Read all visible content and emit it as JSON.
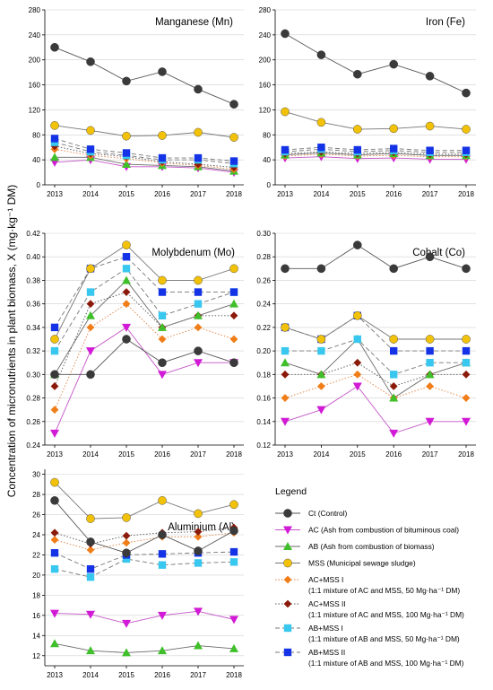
{
  "y_axis_label": "Concentration of micronutrients in plant biomass, X (mg·kg⁻¹ DM)",
  "legend": {
    "title": "Legend",
    "entries": [
      {
        "key": "ct",
        "lines": [
          "Ct (Control)"
        ]
      },
      {
        "key": "ac",
        "lines": [
          "AC (Ash from combustion of bituminous coal)"
        ]
      },
      {
        "key": "ab",
        "lines": [
          "AB (Ash from combustion of biomass)"
        ]
      },
      {
        "key": "mss",
        "lines": [
          "MSS (Municipal sewage sludge)"
        ]
      },
      {
        "key": "acmss1",
        "lines": [
          "AC+MSS I",
          "(1:1 mixture of AC and MSS, 50 Mg·ha⁻¹ DM)"
        ]
      },
      {
        "key": "acmss2",
        "lines": [
          "AC+MSS II",
          "(1:1 mixture of AC and MSS, 100 Mg·ha⁻¹ DM)"
        ]
      },
      {
        "key": "abmss1",
        "lines": [
          "AB+MSS I",
          "(1:1 mixture of AB and MSS, 50 Mg·ha⁻¹ DM)"
        ]
      },
      {
        "key": "abmss2",
        "lines": [
          "AB+MSS II",
          "(1:1 mixture of AB and MSS, 100 Mg·ha⁻¹ DM)"
        ]
      }
    ]
  },
  "series_styles": {
    "ct": {
      "color": "#3a3a3a",
      "line": "#555555",
      "dash": "",
      "marker": "circle"
    },
    "ac": {
      "color": "#d21ad6",
      "line": "#c455c8",
      "dash": "",
      "marker": "triangle-down"
    },
    "ab": {
      "color": "#3fbf2a",
      "line": "#6a6a6a",
      "dash": "",
      "marker": "triangle-up"
    },
    "mss": {
      "color": "#f2c20a",
      "line": "#777777",
      "dash": "",
      "marker": "circle"
    },
    "acmss1": {
      "color": "#f07d18",
      "line": "#e08040",
      "dash": "1.5,2",
      "marker": "diamond"
    },
    "acmss2": {
      "color": "#8b1a0a",
      "line": "#555555",
      "dash": "1.5,2",
      "marker": "diamond"
    },
    "abmss1": {
      "color": "#38c7ef",
      "line": "#777777",
      "dash": "5,3",
      "marker": "square"
    },
    "abmss2": {
      "color": "#1433e6",
      "line": "#777777",
      "dash": "5,3",
      "marker": "square"
    }
  },
  "chart_data": [
    {
      "type": "line",
      "title": "Manganese (Mn)",
      "x": [
        "2013",
        "2014",
        "2015",
        "2016",
        "2017",
        "2018"
      ],
      "ylim": [
        0,
        280
      ],
      "yticks": [
        0,
        40,
        80,
        120,
        160,
        200,
        240,
        280
      ],
      "grid": true,
      "series": [
        {
          "key": "ct",
          "values": [
            220,
            197,
            166,
            181,
            153,
            129
          ]
        },
        {
          "key": "mss",
          "values": [
            95,
            87,
            78,
            79,
            84,
            76
          ]
        },
        {
          "key": "abmss2",
          "values": [
            74,
            57,
            51,
            43,
            43,
            38
          ]
        },
        {
          "key": "abmss1",
          "values": [
            68,
            53,
            47,
            40,
            40,
            34
          ]
        },
        {
          "key": "acmss2",
          "values": [
            62,
            50,
            45,
            37,
            33,
            28
          ]
        },
        {
          "key": "acmss1",
          "values": [
            57,
            47,
            42,
            35,
            31,
            25
          ]
        },
        {
          "key": "ab",
          "values": [
            44,
            44,
            33,
            31,
            29,
            22
          ]
        },
        {
          "key": "ac",
          "values": [
            36,
            40,
            29,
            29,
            27,
            20
          ]
        }
      ]
    },
    {
      "type": "line",
      "title": "Iron (Fe)",
      "x": [
        "2013",
        "2014",
        "2015",
        "2016",
        "2017",
        "2018"
      ],
      "ylim": [
        0,
        280
      ],
      "yticks": [
        0,
        40,
        80,
        120,
        160,
        200,
        240,
        280
      ],
      "grid": true,
      "series": [
        {
          "key": "ct",
          "values": [
            242,
            208,
            177,
            193,
            174,
            147
          ]
        },
        {
          "key": "mss",
          "values": [
            117,
            100,
            89,
            90,
            94,
            89
          ]
        },
        {
          "key": "abmss2",
          "values": [
            56,
            60,
            56,
            58,
            55,
            55
          ]
        },
        {
          "key": "abmss1",
          "values": [
            53,
            57,
            53,
            55,
            52,
            52
          ]
        },
        {
          "key": "acmss2",
          "values": [
            50,
            53,
            50,
            52,
            49,
            49
          ]
        },
        {
          "key": "ab",
          "values": [
            48,
            51,
            48,
            50,
            47,
            47
          ]
        },
        {
          "key": "acmss1",
          "values": [
            46,
            49,
            46,
            47,
            45,
            45
          ]
        },
        {
          "key": "ac",
          "values": [
            43,
            45,
            42,
            43,
            41,
            41
          ]
        }
      ]
    },
    {
      "type": "line",
      "title": "Molybdenum (Mo)",
      "x": [
        "2013",
        "2014",
        "2015",
        "2016",
        "2017",
        "2018"
      ],
      "ylim": [
        0.24,
        0.42
      ],
      "yticks": [
        0.24,
        0.26,
        0.28,
        0.3,
        0.32,
        0.34,
        0.36,
        0.38,
        0.4,
        0.42
      ],
      "grid": true,
      "series": [
        {
          "key": "ct",
          "values": [
            0.3,
            0.3,
            0.33,
            0.31,
            0.32,
            0.31
          ]
        },
        {
          "key": "mss",
          "values": [
            0.33,
            0.39,
            0.41,
            0.38,
            0.38,
            0.39
          ]
        },
        {
          "key": "abmss2",
          "values": [
            0.34,
            0.39,
            0.4,
            0.37,
            0.37,
            0.37
          ]
        },
        {
          "key": "abmss1",
          "values": [
            0.32,
            0.37,
            0.39,
            0.35,
            0.36,
            0.37
          ]
        },
        {
          "key": "ab",
          "values": [
            0.3,
            0.35,
            0.38,
            0.34,
            0.35,
            0.36
          ]
        },
        {
          "key": "acmss2",
          "values": [
            0.29,
            0.36,
            0.37,
            0.34,
            0.35,
            0.35
          ]
        },
        {
          "key": "acmss1",
          "values": [
            0.27,
            0.34,
            0.36,
            0.33,
            0.34,
            0.33
          ]
        },
        {
          "key": "ac",
          "values": [
            0.25,
            0.32,
            0.34,
            0.3,
            0.31,
            0.31
          ]
        }
      ]
    },
    {
      "type": "line",
      "title": "Cobalt (Co)",
      "x": [
        "2013",
        "2014",
        "2015",
        "2016",
        "2017",
        "2018"
      ],
      "ylim": [
        0.12,
        0.3
      ],
      "yticks": [
        0.12,
        0.14,
        0.16,
        0.18,
        0.2,
        0.22,
        0.24,
        0.26,
        0.28,
        0.3
      ],
      "grid": true,
      "series": [
        {
          "key": "ct",
          "values": [
            0.27,
            0.27,
            0.29,
            0.27,
            0.28,
            0.27
          ]
        },
        {
          "key": "mss",
          "values": [
            0.22,
            0.21,
            0.23,
            0.21,
            0.21,
            0.21
          ]
        },
        {
          "key": "abmss2",
          "values": [
            0.22,
            0.21,
            0.23,
            0.2,
            0.2,
            0.2
          ]
        },
        {
          "key": "abmss1",
          "values": [
            0.2,
            0.2,
            0.21,
            0.18,
            0.19,
            0.19
          ]
        },
        {
          "key": "ab",
          "values": [
            0.19,
            0.18,
            0.21,
            0.16,
            0.18,
            0.19
          ]
        },
        {
          "key": "acmss2",
          "values": [
            0.18,
            0.18,
            0.19,
            0.17,
            0.18,
            0.18
          ]
        },
        {
          "key": "acmss1",
          "values": [
            0.16,
            0.17,
            0.18,
            0.16,
            0.17,
            0.16
          ]
        },
        {
          "key": "ac",
          "values": [
            0.14,
            0.15,
            0.17,
            0.13,
            0.14,
            0.14
          ]
        }
      ]
    },
    {
      "type": "line",
      "title": "Aluminium (Al)",
      "x": [
        "2013",
        "2014",
        "2015",
        "2016",
        "2017",
        "2018"
      ],
      "ylim": [
        11,
        30.5
      ],
      "yticks": [
        12,
        14,
        16,
        18,
        20,
        22,
        24,
        26,
        28,
        30
      ],
      "grid": true,
      "series": [
        {
          "key": "ct",
          "values": [
            27.4,
            23.3,
            22.2,
            24.0,
            22.4,
            24.4
          ]
        },
        {
          "key": "mss",
          "values": [
            29.2,
            25.6,
            25.7,
            27.4,
            26.1,
            27.0
          ]
        },
        {
          "key": "acmss2",
          "values": [
            24.2,
            23.1,
            23.9,
            24.2,
            24.3,
            24.7
          ]
        },
        {
          "key": "acmss1",
          "values": [
            23.5,
            22.5,
            23.2,
            23.8,
            23.8,
            24.2
          ]
        },
        {
          "key": "abmss2",
          "values": [
            22.2,
            20.6,
            22.0,
            22.1,
            22.2,
            22.3
          ]
        },
        {
          "key": "abmss1",
          "values": [
            20.6,
            19.8,
            21.6,
            21.0,
            21.2,
            21.3
          ]
        },
        {
          "key": "ac",
          "values": [
            16.2,
            16.1,
            15.2,
            16.0,
            16.4,
            15.6
          ]
        },
        {
          "key": "ab",
          "values": [
            13.2,
            12.5,
            12.3,
            12.5,
            13.0,
            12.7
          ]
        }
      ]
    }
  ]
}
